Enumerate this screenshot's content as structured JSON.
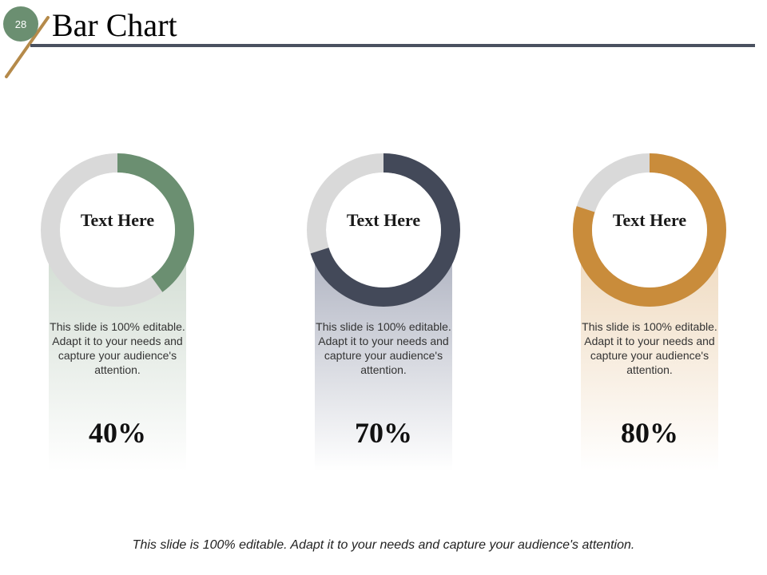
{
  "slide": {
    "number": "28",
    "title": "Bar Chart",
    "footer": "This slide is 100% editable. Adapt it to your needs and capture your audience's attention."
  },
  "colors": {
    "accent_green": "#6b8f71",
    "accent_navy": "#434959",
    "accent_gold": "#c98c3b",
    "track_gray": "#d9d9d9",
    "title_rule": "#4a5160"
  },
  "chart_data": {
    "type": "pie",
    "variant": "donut-progress",
    "items": [
      {
        "label": "Text Here",
        "value": 40,
        "value_label": "40%",
        "description": "This slide is 100% editable. Adapt it to your needs and capture your audience's attention.",
        "color": "#6b8f71",
        "band_color": "#c9d6ca"
      },
      {
        "label": "Text Here",
        "value": 70,
        "value_label": "70%",
        "description": "This slide is 100% editable. Adapt it to your needs and capture your audience's attention.",
        "color": "#434959",
        "band_color": "#9ea3b4"
      },
      {
        "label": "Text Here",
        "value": 80,
        "value_label": "80%",
        "description": "This slide is 100% editable. Adapt it to your needs and capture your audience's attention.",
        "color": "#c98c3b",
        "band_color": "#ecd3b3"
      }
    ]
  }
}
